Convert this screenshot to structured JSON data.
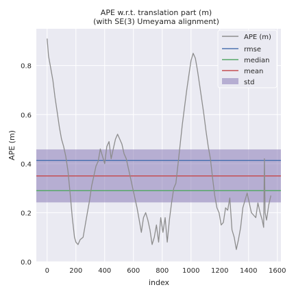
{
  "chart_data": {
    "type": "line",
    "title_line1": "APE w.r.t. translation part (m)",
    "title_line2": "(with SE(3) Umeyama alignment)",
    "xlabel": "index",
    "ylabel": "APE (m)",
    "xlim": [
      -75,
      1625
    ],
    "ylim": [
      0.0,
      0.95
    ],
    "xticks": [
      0,
      200,
      400,
      600,
      800,
      1000,
      1200,
      1400,
      1600
    ],
    "yticks": [
      0.0,
      0.2,
      0.4,
      0.6,
      0.8
    ],
    "ytick_labels": [
      "0.0",
      "0.2",
      "0.4",
      "0.6",
      "0.8"
    ],
    "grid": true,
    "legend_position": "top-right",
    "legend": [
      "APE (m)",
      "rmse",
      "median",
      "mean",
      "std"
    ],
    "colors": {
      "ape": "#8c8c8c",
      "rmse": "#4c72b0",
      "median": "#55a868",
      "mean": "#c44e52",
      "std": "#8172b2",
      "background": "#eaeaf2"
    },
    "stats": {
      "rmse": 0.413,
      "median": 0.29,
      "mean": 0.35,
      "std": 0.108
    },
    "series": [
      {
        "name": "APE (m)",
        "x": [
          0,
          10,
          25,
          40,
          55,
          70,
          85,
          100,
          115,
          130,
          145,
          160,
          175,
          190,
          200,
          215,
          230,
          250,
          265,
          280,
          295,
          310,
          325,
          340,
          355,
          370,
          385,
          400,
          415,
          430,
          445,
          460,
          475,
          490,
          505,
          520,
          535,
          550,
          565,
          580,
          595,
          610,
          625,
          640,
          655,
          670,
          685,
          700,
          715,
          730,
          745,
          760,
          775,
          790,
          805,
          820,
          835,
          850,
          865,
          880,
          895,
          910,
          925,
          940,
          955,
          970,
          985,
          1000,
          1015,
          1030,
          1045,
          1060,
          1075,
          1090,
          1105,
          1120,
          1135,
          1150,
          1165,
          1180,
          1195,
          1210,
          1225,
          1240,
          1255,
          1270,
          1285,
          1300,
          1315,
          1330,
          1345,
          1360,
          1375,
          1390,
          1405,
          1420,
          1435,
          1450,
          1465,
          1480,
          1495,
          1505,
          1510,
          1515,
          1525,
          1540,
          1555
        ],
        "values": [
          0.91,
          0.84,
          0.79,
          0.74,
          0.67,
          0.61,
          0.55,
          0.5,
          0.47,
          0.43,
          0.37,
          0.28,
          0.18,
          0.1,
          0.08,
          0.07,
          0.09,
          0.1,
          0.15,
          0.2,
          0.25,
          0.31,
          0.35,
          0.39,
          0.41,
          0.46,
          0.43,
          0.4,
          0.47,
          0.49,
          0.42,
          0.46,
          0.5,
          0.52,
          0.5,
          0.48,
          0.44,
          0.42,
          0.38,
          0.34,
          0.3,
          0.26,
          0.22,
          0.17,
          0.12,
          0.18,
          0.2,
          0.17,
          0.13,
          0.07,
          0.1,
          0.15,
          0.08,
          0.18,
          0.12,
          0.18,
          0.08,
          0.17,
          0.24,
          0.3,
          0.32,
          0.4,
          0.48,
          0.56,
          0.63,
          0.7,
          0.76,
          0.82,
          0.85,
          0.83,
          0.78,
          0.72,
          0.66,
          0.6,
          0.53,
          0.47,
          0.42,
          0.34,
          0.27,
          0.22,
          0.2,
          0.15,
          0.16,
          0.22,
          0.21,
          0.26,
          0.13,
          0.1,
          0.05,
          0.09,
          0.14,
          0.22,
          0.25,
          0.28,
          0.24,
          0.2,
          0.19,
          0.18,
          0.24,
          0.2,
          0.17,
          0.14,
          0.42,
          0.2,
          0.17,
          0.23,
          0.27
        ]
      }
    ]
  }
}
